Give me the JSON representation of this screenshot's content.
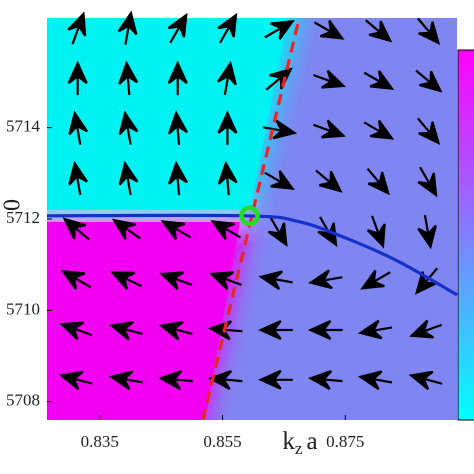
{
  "chart_data": {
    "type": "quiver",
    "xlabel": [
      "k",
      "z",
      "a"
    ],
    "ylabel": "0",
    "xlim": [
      0.8264,
      0.8932
    ],
    "ylim": [
      5707.6,
      5716.4
    ],
    "xticks": [
      0.835,
      0.855,
      0.875
    ],
    "yticks": [
      5708,
      5710,
      5712,
      5714
    ],
    "field": {
      "color": "#000000",
      "x": [
        0.8314,
        0.8396,
        0.8477,
        0.8558,
        0.864,
        0.8721,
        0.8802,
        0.8884
      ],
      "y": [
        5716.14,
        5715.04,
        5713.95,
        5712.85,
        5711.76,
        5710.67,
        5709.57,
        5708.48
      ],
      "angle": [
        [
          70,
          80,
          60,
          60,
          30,
          -30,
          -40,
          -50
        ],
        [
          90,
          95,
          90,
          80,
          40,
          -20,
          -30,
          -40
        ],
        [
          100,
          100,
          95,
          90,
          -10,
          -20,
          -30,
          -50
        ],
        [
          100,
          100,
          95,
          95,
          -30,
          -40,
          -50,
          -60
        ],
        [
          140,
          145,
          150,
          150,
          -60,
          -60,
          -70,
          -80
        ],
        [
          150,
          155,
          160,
          160,
          170,
          -170,
          -150,
          -130
        ],
        [
          160,
          165,
          165,
          175,
          180,
          180,
          -170,
          -160
        ],
        [
          165,
          170,
          175,
          175,
          180,
          175,
          170,
          165
        ]
      ]
    },
    "series": [
      {
        "color": "#e8262a",
        "dash": true,
        "x": [
          0.8518,
          0.8675
        ],
        "values": [
          5707.6,
          5716.4
        ]
      },
      {
        "color": "#1530c8",
        "x": [
          0.8264,
          0.8586,
          0.8675,
          0.8757,
          0.8838,
          0.8932
        ],
        "values": [
          5712.07,
          5712.07,
          5711.94,
          5711.55,
          5711.06,
          5710.34
        ]
      },
      {
        "color": "#22dd22",
        "marker": "circle",
        "x": [
          0.8594
        ],
        "values": [
          5712.07
        ]
      }
    ]
  }
}
